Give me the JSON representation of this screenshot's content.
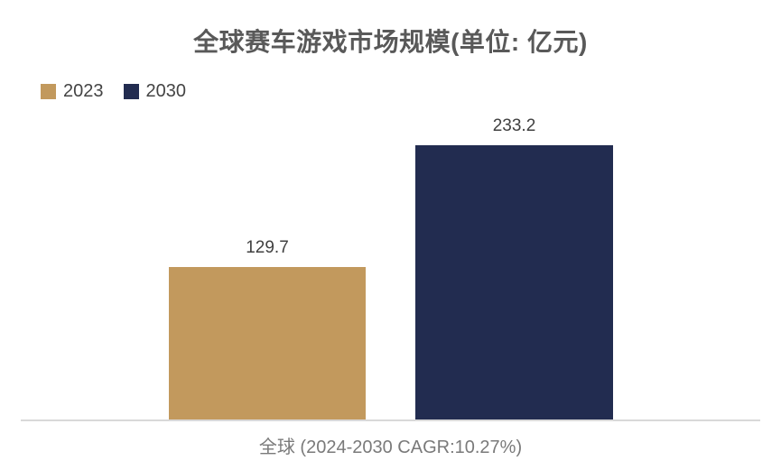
{
  "title": "全球赛车游戏市场规模(单位: 亿元)",
  "legend": {
    "items": [
      {
        "label": "2023",
        "color": "#c2995d"
      },
      {
        "label": "2030",
        "color": "#222c50"
      }
    ],
    "position": "top-left"
  },
  "axis": {
    "category_label": "全球 (2024-2030 CAGR:10.27%)",
    "line_color": "#d9d9d9"
  },
  "colors": {
    "title": "#595959",
    "data_label": "#404040",
    "category_label": "#7a7a7a",
    "background": "#ffffff"
  },
  "chart_data": {
    "type": "bar",
    "title": "全球赛车游戏市场规模(单位: 亿元)",
    "categories": [
      "全球 (2024-2030 CAGR:10.27%)"
    ],
    "series": [
      {
        "name": "2023",
        "values": [
          129.7
        ],
        "color": "#c2995d"
      },
      {
        "name": "2030",
        "values": [
          233.2
        ],
        "color": "#222c50"
      }
    ],
    "data_labels": [
      "129.7",
      "233.2"
    ],
    "unit": "亿元",
    "ylim": [
      0,
      233.2
    ],
    "grid": false,
    "y_axis_visible": false,
    "legend_position": "top-left"
  }
}
